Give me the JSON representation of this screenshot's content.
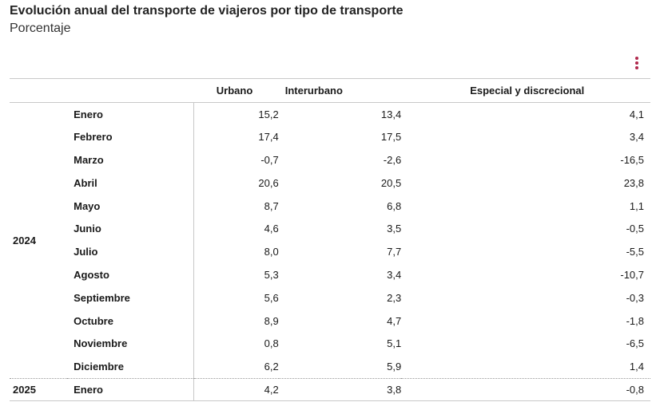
{
  "title": "Evolución anual del transporte de viajeros por tipo de transporte",
  "subtitle": "Porcentaje",
  "menu_icon": "vertical-dots-icon",
  "accent_color": "#b0284c",
  "columns": [
    "Urbano",
    "Interurbano",
    "Especial y discrecional"
  ],
  "groups": [
    {
      "year": "2024",
      "rows": [
        {
          "month": "Enero",
          "values": [
            "15,2",
            "13,4",
            "4,1"
          ]
        },
        {
          "month": "Febrero",
          "values": [
            "17,4",
            "17,5",
            "3,4"
          ]
        },
        {
          "month": "Marzo",
          "values": [
            "-0,7",
            "-2,6",
            "-16,5"
          ]
        },
        {
          "month": "Abril",
          "values": [
            "20,6",
            "20,5",
            "23,8"
          ]
        },
        {
          "month": "Mayo",
          "values": [
            "8,7",
            "6,8",
            "1,1"
          ]
        },
        {
          "month": "Junio",
          "values": [
            "4,6",
            "3,5",
            "-0,5"
          ]
        },
        {
          "month": "Julio",
          "values": [
            "8,0",
            "7,7",
            "-5,5"
          ]
        },
        {
          "month": "Agosto",
          "values": [
            "5,3",
            "3,4",
            "-10,7"
          ]
        },
        {
          "month": "Septiembre",
          "values": [
            "5,6",
            "2,3",
            "-0,3"
          ]
        },
        {
          "month": "Octubre",
          "values": [
            "8,9",
            "4,7",
            "-1,8"
          ]
        },
        {
          "month": "Noviembre",
          "values": [
            "0,8",
            "5,1",
            "-6,5"
          ]
        },
        {
          "month": "Diciembre",
          "values": [
            "6,2",
            "5,9",
            "1,4"
          ]
        }
      ]
    },
    {
      "year": "2025",
      "rows": [
        {
          "month": "Enero",
          "values": [
            "4,2",
            "3,8",
            "-0,8"
          ]
        }
      ]
    }
  ]
}
